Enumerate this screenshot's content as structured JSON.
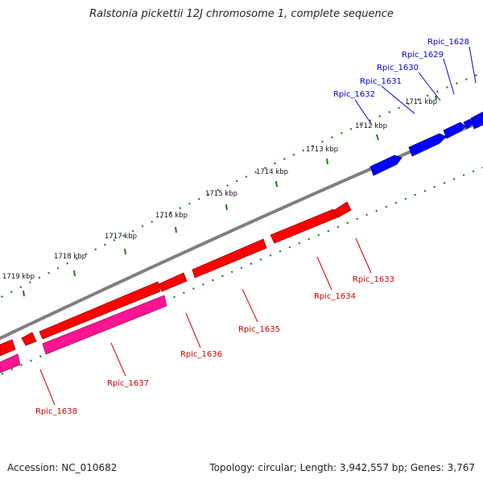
{
  "title": "Ralstonia pickettii 12J chromosome 1, complete sequence",
  "accession": "Accession: NC_010682",
  "topology": "Topology: circular; Length: 3,942,557 bp; Genes: 3,767",
  "colors": {
    "backbone": "#7f7f7f",
    "forward_gene": "#0000ff",
    "reverse_gene": "#ff0000",
    "pseudo_gene": "#ff1493",
    "tick": "#1a7a1a",
    "forward_label": "#0000cc",
    "reverse_label": "#cc0000"
  },
  "ticks": [
    "1711 kbp",
    "1712 kbp",
    "1713 kbp",
    "1714 kbp",
    "1715 kbp",
    "1716 kbp",
    "1717 kbp",
    "1718 kbp",
    "1719 kbp"
  ],
  "forward_genes": [
    "Rpic_1628",
    "Rpic_1629",
    "Rpic_1630",
    "Rpic_1631",
    "Rpic_1632"
  ],
  "reverse_genes": [
    "Rpic_1633",
    "Rpic_1634",
    "Rpic_1635",
    "Rpic_1636",
    "Rpic_1637",
    "Rpic_1638"
  ]
}
